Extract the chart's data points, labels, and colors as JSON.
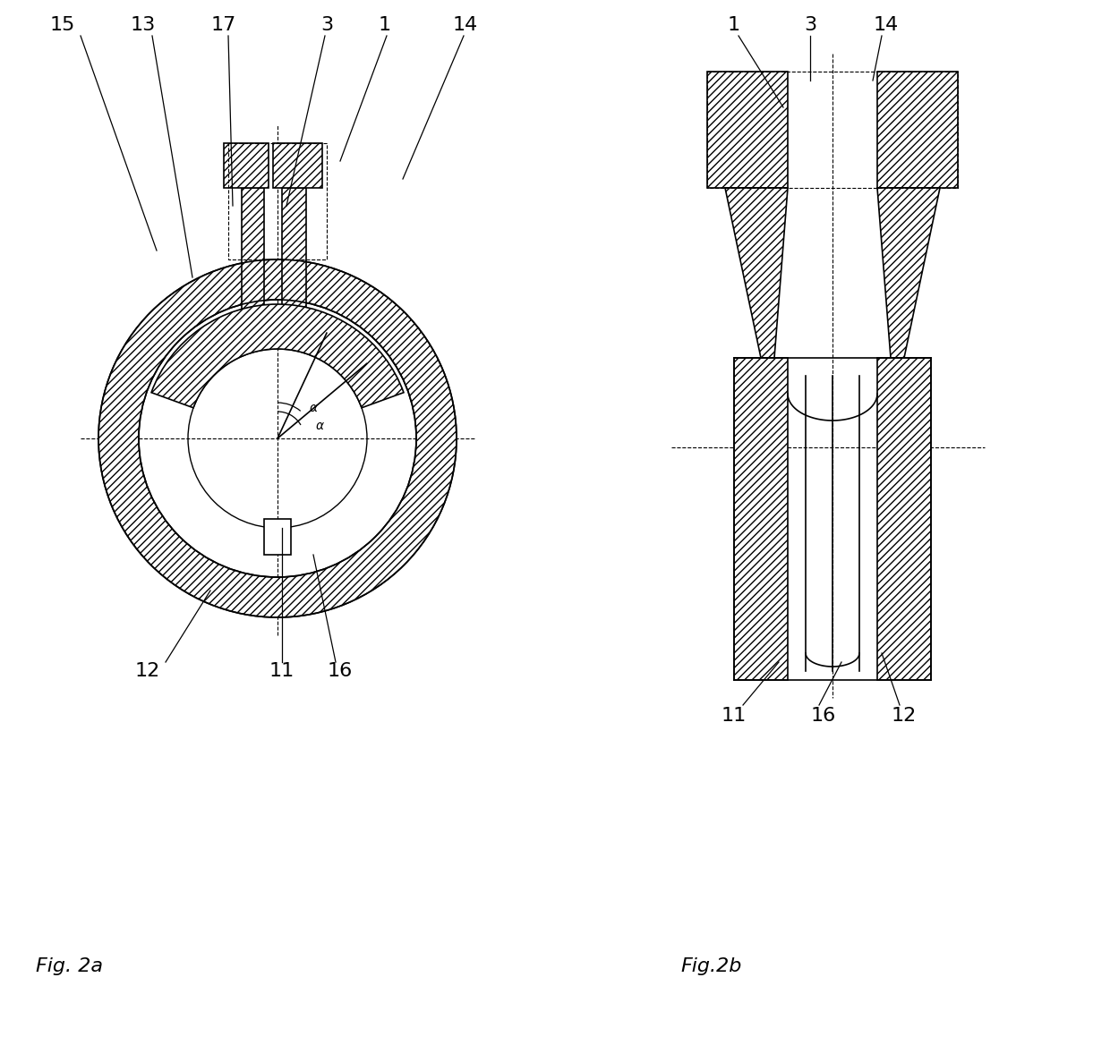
{
  "fig_width": 12.4,
  "fig_height": 11.59,
  "bg_color": "#ffffff",
  "hatch_color": "#888888",
  "line_color": "#000000",
  "hatch_pattern": "////",
  "fig2a_label": "Fig. 2a",
  "fig2b_label": "Fig.2b",
  "label_fontsize": 16,
  "ref_fontsize": 16
}
